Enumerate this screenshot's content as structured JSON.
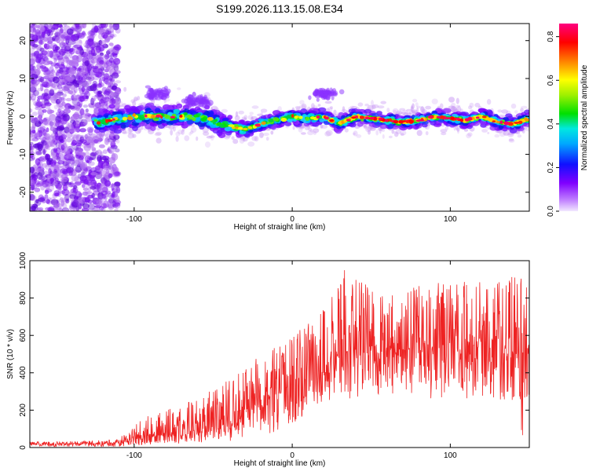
{
  "title": "S199.2026.113.15.08.E34",
  "chart_data": [
    {
      "type": "heatmap",
      "name": "spectrogram",
      "xlabel": "Height of straight line (km)",
      "ylabel": "Frequency (Hz)",
      "xlim": [
        -166,
        150
      ],
      "ylim": [
        -25,
        24.5
      ],
      "xticks": [
        -100,
        0,
        100
      ],
      "xtick_labels": [
        "-100",
        "0",
        "100"
      ],
      "yticks": [
        -20,
        -10,
        0,
        10,
        20
      ],
      "ytick_labels": [
        "-20",
        "-10",
        "0",
        "10",
        "20"
      ],
      "signal_track": {
        "description": "narrow high-amplitude band near 0 Hz from about -120 km to 150 km; diffuse noise below -110 km",
        "x": [
          -120,
          -100,
          -80,
          -60,
          -40,
          -30,
          -20,
          -10,
          0,
          10,
          20,
          30,
          40,
          50,
          60,
          70,
          80,
          90,
          100,
          110,
          120,
          130,
          140,
          150
        ],
        "y": [
          -1.5,
          0,
          0,
          0,
          -2.5,
          -3.5,
          -2,
          -1,
          0,
          -0.5,
          0,
          -2,
          0,
          -0.5,
          -1,
          -1.5,
          -1,
          0,
          -0.5,
          -1,
          0,
          -1.5,
          -2,
          -0.5
        ]
      },
      "colorbar": {
        "label": "Normalized spectral amplitude",
        "range": [
          0,
          0.86
        ],
        "ticks": [
          0.0,
          0.2,
          0.4,
          0.6,
          0.8
        ],
        "tick_labels": [
          "0.0",
          "0.2",
          "0.4",
          "0.6",
          "0.8"
        ],
        "colormap": [
          "#e8d0ff",
          "#8000ff",
          "#1010ff",
          "#00d0ff",
          "#00e000",
          "#ffff00",
          "#ff8000",
          "#ff0000",
          "#ff0080"
        ]
      }
    },
    {
      "type": "line",
      "name": "snr",
      "xlabel": "Height of straight line (km)",
      "ylabel": "SNR (10 * v/v)",
      "xlim": [
        -166,
        150
      ],
      "ylim": [
        0,
        1000
      ],
      "xticks": [
        -100,
        0,
        100
      ],
      "xtick_labels": [
        "-100",
        "0",
        "100"
      ],
      "yticks": [
        0,
        200,
        400,
        600,
        800,
        1000
      ],
      "ytick_labels": [
        "0",
        "200",
        "400",
        "600",
        "800",
        "1000"
      ],
      "color": "#ee2222",
      "envelope": {
        "x": [
          -166,
          -130,
          -110,
          -100,
          -90,
          -80,
          -70,
          -60,
          -50,
          -40,
          -30,
          -20,
          -10,
          0,
          10,
          20,
          30,
          35,
          40,
          50,
          60,
          80,
          100,
          120,
          140,
          150
        ],
        "low": [
          5,
          5,
          5,
          10,
          15,
          20,
          20,
          25,
          30,
          35,
          40,
          50,
          80,
          120,
          180,
          230,
          250,
          260,
          260,
          270,
          270,
          260,
          250,
          260,
          250,
          260
        ],
        "mean": [
          20,
          20,
          25,
          45,
          60,
          70,
          80,
          90,
          110,
          140,
          180,
          220,
          280,
          330,
          370,
          420,
          470,
          520,
          540,
          540,
          520,
          530,
          540,
          520,
          500,
          500
        ],
        "high": [
          30,
          35,
          45,
          120,
          180,
          200,
          230,
          260,
          320,
          360,
          420,
          500,
          540,
          600,
          660,
          760,
          900,
          1000,
          930,
          850,
          850,
          870,
          900,
          920,
          920,
          900
        ]
      }
    }
  ]
}
